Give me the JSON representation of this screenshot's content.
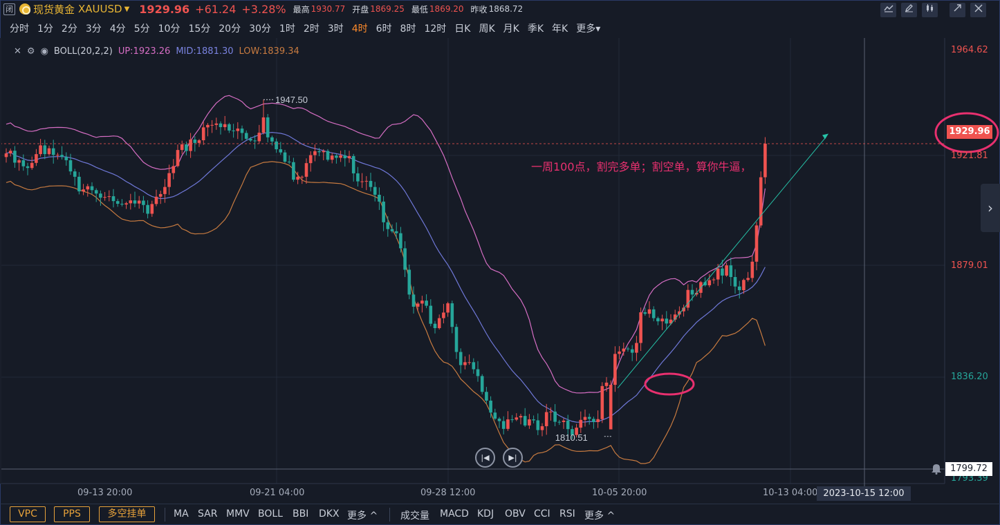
{
  "header": {
    "status_badge": "闭",
    "symbol_name": "现货黄金",
    "symbol_code": "XAUUSD",
    "last_price": "1929.96",
    "change": "+61.24",
    "change_pct": "+3.28%",
    "high_label": "最高",
    "high_value": "1930.77",
    "open_label": "开盘",
    "open_value": "1869.25",
    "low_label": "最低",
    "low_value": "1869.20",
    "prev_close_label": "昨收",
    "prev_close_value": "1868.72"
  },
  "intervals": [
    "分时",
    "1分",
    "2分",
    "3分",
    "4分",
    "5分",
    "10分",
    "15分",
    "20分",
    "30分",
    "1时",
    "2时",
    "3时",
    "4时",
    "6时",
    "8时",
    "12时",
    "日K",
    "周K",
    "月K",
    "季K",
    "年K",
    "更多"
  ],
  "active_interval": "4时",
  "indicator": {
    "name": "BOLL(20,2,2)",
    "up": "UP:1923.26",
    "mid": "MID:1881.30",
    "low": "LOW:1839.34"
  },
  "annotation": "一周100点，割完多单；割空单，算你牛逼，",
  "price_axis": {
    "labels": [
      "1964.62",
      "1921.81",
      "1879.01",
      "1836.20",
      "1793.39"
    ],
    "current_price_tag": "1929.96",
    "crosshair_price_tag": "1799.72"
  },
  "time_axis": {
    "labels": [
      "09-13 20:00",
      "09-21 04:00",
      "09-28 12:00",
      "10-05 20:00",
      "10-13 04:00"
    ],
    "crosshair_date_tag": "2023-10-15 12:00"
  },
  "chart_data": {
    "type": "candlestick",
    "title": "",
    "xlabel": "",
    "ylabel": "",
    "ylim": [
      1792.0,
      1968.0
    ],
    "x_ticks": [
      "09-13 20:00",
      "09-21 04:00",
      "09-28 12:00",
      "10-05 20:00",
      "10-13 04:00"
    ],
    "y_ticks": [
      1964.62,
      1921.81,
      1879.01,
      1836.2,
      1793.39
    ],
    "annotations": {
      "high": "1947.50",
      "low": "1810.51"
    },
    "up_color": "#ef5350",
    "down_color": "#26a69a",
    "closes": [
      1925.4,
      1926.5,
      1921.6,
      1922.6,
      1920.1,
      1919.4,
      1921.5,
      1925.1,
      1928.7,
      1925.1,
      1927.5,
      1924.8,
      1924.8,
      1924.0,
      1922.6,
      1918.0,
      1915.8,
      1909.8,
      1910.6,
      1911.9,
      1910.3,
      1908.9,
      1907.2,
      1907.5,
      1907.8,
      1905.8,
      1904.7,
      1904.4,
      1904.9,
      1906.1,
      1904.8,
      1906.0,
      1904.2,
      1900.6,
      1904.6,
      1907.6,
      1908.7,
      1911.6,
      1917.3,
      1920.2,
      1926.8,
      1929.1,
      1926.4,
      1931.1,
      1929.7,
      1930.8,
      1936.1,
      1937.1,
      1937.1,
      1937.7,
      1936.2,
      1937.4,
      1934.8,
      1934.6,
      1935.6,
      1933.8,
      1931.4,
      1930.7,
      1930.4,
      1933.9,
      1940.2,
      1932.0,
      1930.3,
      1927.1,
      1925.8,
      1922.0,
      1921.8,
      1914.6,
      1915.8,
      1915.8,
      1921.4,
      1924.7,
      1926.3,
      1925.9,
      1926.4,
      1922.8,
      1924.5,
      1923.6,
      1924.6,
      1923.4,
      1924.3,
      1917.2,
      1913.9,
      1913.9,
      1914.1,
      1911.6,
      1908.4,
      1905.6,
      1897.1,
      1894.3,
      1893.4,
      1892.6,
      1886.4,
      1877.6,
      1867.4,
      1862.4,
      1863.7,
      1864.9,
      1862.8,
      1855.4,
      1853.6,
      1857.7,
      1860.0,
      1863.8,
      1854.1,
      1843.8,
      1838.4,
      1839.6,
      1839.6,
      1836.7,
      1833.9,
      1827.4,
      1823.8,
      1818.9,
      1816.4,
      1815.4,
      1812.2,
      1816.1,
      1816.0,
      1816.9,
      1817.5,
      1813.6,
      1816.1,
      1815.7,
      1811.7,
      1813.3,
      1819.1,
      1819.3,
      1815.1,
      1815.0,
      1815.6,
      1812.1,
      1809.7,
      1812.7,
      1815.9,
      1817.1,
      1816.3,
      1815.0,
      1816.2,
      1829.8,
      1831.2,
      1830.3,
      1843.0,
      1844.0,
      1845.2,
      1844.9,
      1843.5,
      1847.5,
      1860.1,
      1859.5,
      1861.3,
      1857.7,
      1856.4,
      1857.5,
      1855.5,
      1857.1,
      1859.2,
      1860.5,
      1862.0,
      1869.3,
      1867.4,
      1868.1,
      1872.5,
      1871.2,
      1873.3,
      1873.6,
      1878.1,
      1875.2,
      1879.4,
      1874.6,
      1870.7,
      1869.2,
      1873.4,
      1874.2,
      1880.9,
      1895.8,
      1915.6,
      1929.4
    ]
  }
}
